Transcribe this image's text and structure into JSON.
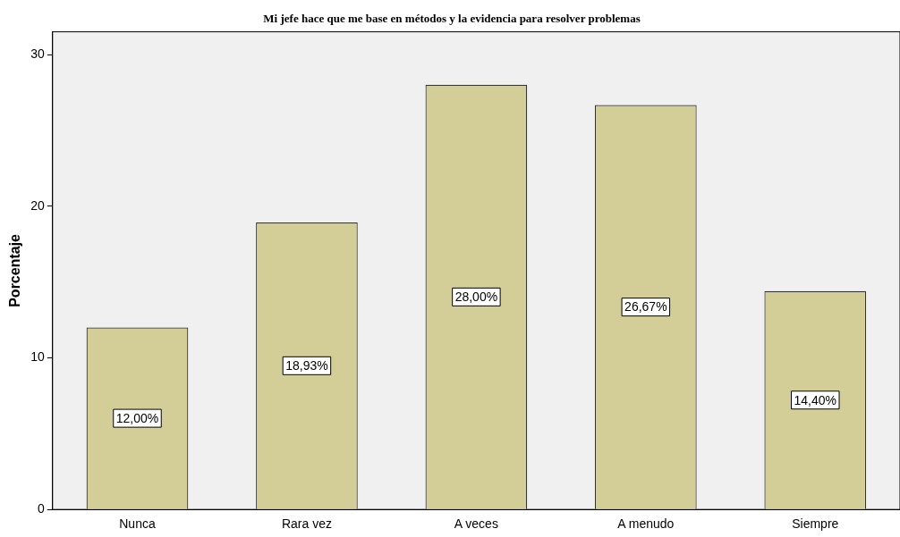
{
  "chart_data": {
    "type": "bar",
    "title": "Mi jefe hace que me base en métodos y la evidencia para resolver problemas",
    "ylabel": "Porcentaje",
    "categories": [
      "Nunca",
      "Rara vez",
      "A veces",
      "A menudo",
      "Siempre"
    ],
    "values": [
      12.0,
      18.93,
      28.0,
      26.67,
      14.4
    ],
    "value_labels": [
      "12,00%",
      "18,93%",
      "28,00%",
      "26,67%",
      "14,40%"
    ],
    "color": "#d3ce97",
    "ylim": [
      0,
      31.5
    ],
    "yticks": [
      0,
      10,
      20,
      30
    ],
    "grid": false,
    "legend": false
  }
}
